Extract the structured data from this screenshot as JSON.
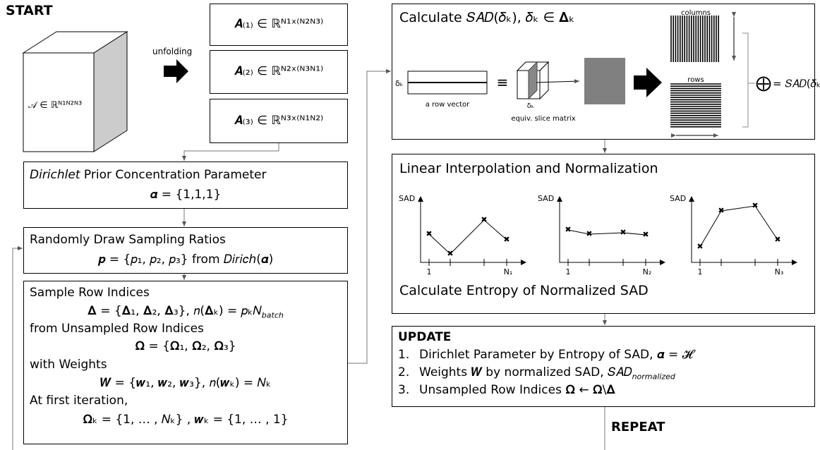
{
  "start": "START",
  "cube_label": "𝒜 ∈ ℝᴺ¹ᴺ²ᴺ³",
  "unfolding": "unfolding",
  "unfoldings": [
    "𝑨₍₁₎ ∈ ℝᴺ¹ˣ⁽ᴺ²ᴺ³⁾",
    "𝑨₍₂₎ ∈ ℝᴺ²ˣ⁽ᴺ³ᴺ¹⁾",
    "𝑨₍₃₎ ∈ ℝᴺ³ˣ⁽ᴺ¹ᴺ²⁾"
  ],
  "prior": {
    "title_em": "Dirichlet",
    "title": " Prior Concentration Parameter",
    "formula": "𝜶 = {1,1,1}"
  },
  "draw": {
    "title": "Randomly Draw Sampling Ratios",
    "formula": "𝒑 = {𝑝₁, 𝑝₂, 𝑝₃} from 𝐷𝑖𝑟𝑖𝑐ℎ(𝜶)"
  },
  "sample": {
    "title": "Sample Row Indices",
    "delta": "𝚫 = {𝚫₁, 𝚫₂, 𝚫₃}, 𝑛(𝚫ₖ) = 𝑝ₖ𝑁",
    "delta_sub": "batch",
    "from": "from Unsampled Row Indices",
    "omega": "𝛀 = {𝛀₁, 𝛀₂, 𝛀₃}",
    "with": "with Weights",
    "weights": "𝑾 = {𝒘₁, 𝒘₂, 𝒘₃}, 𝑛(𝒘ₖ) = 𝑁ₖ",
    "first": "At first iteration,",
    "init": "𝛀ₖ = {1, … , 𝑁ₖ} , 𝒘ₖ = {1, … , 1}"
  },
  "calc": {
    "title": "Calculate 𝑆𝐴𝐷(𝛿ₖ),  𝛿ₖ ∈ 𝚫ₖ",
    "delta_left": "δₖ",
    "row_vector": "a row vector",
    "equiv": "≡",
    "delta_cube": "δₖ",
    "slice": "equiv. slice matrix",
    "columns": "columns",
    "rows": "rows",
    "oplus": "⨁",
    "result": "= 𝑆𝐴𝐷(𝛿ₖ)"
  },
  "interp": {
    "title": "Linear Interpolation and Normalization",
    "charts": [
      {
        "ylabel": "SAD",
        "start": "1",
        "end": "N₁"
      },
      {
        "ylabel": "SAD",
        "start": "1",
        "end": "N₂"
      },
      {
        "ylabel": "SAD",
        "start": "1",
        "end": "N₃"
      }
    ],
    "footer": "Calculate Entropy of Normalized SAD"
  },
  "update": {
    "title": "UPDATE",
    "items": [
      {
        "num": "1.",
        "text": "Dirichlet Parameter by Entropy of SAD, 𝜶 = 𝓗"
      },
      {
        "num": "2.",
        "text": "Weights 𝑾 by normalized SAD, 𝑆𝐴𝐷",
        "sub": "normalized"
      },
      {
        "num": "3.",
        "text": "Unsampled Row Indices 𝛀 ← 𝛀\\𝚫"
      }
    ]
  },
  "repeat": "REPEAT"
}
